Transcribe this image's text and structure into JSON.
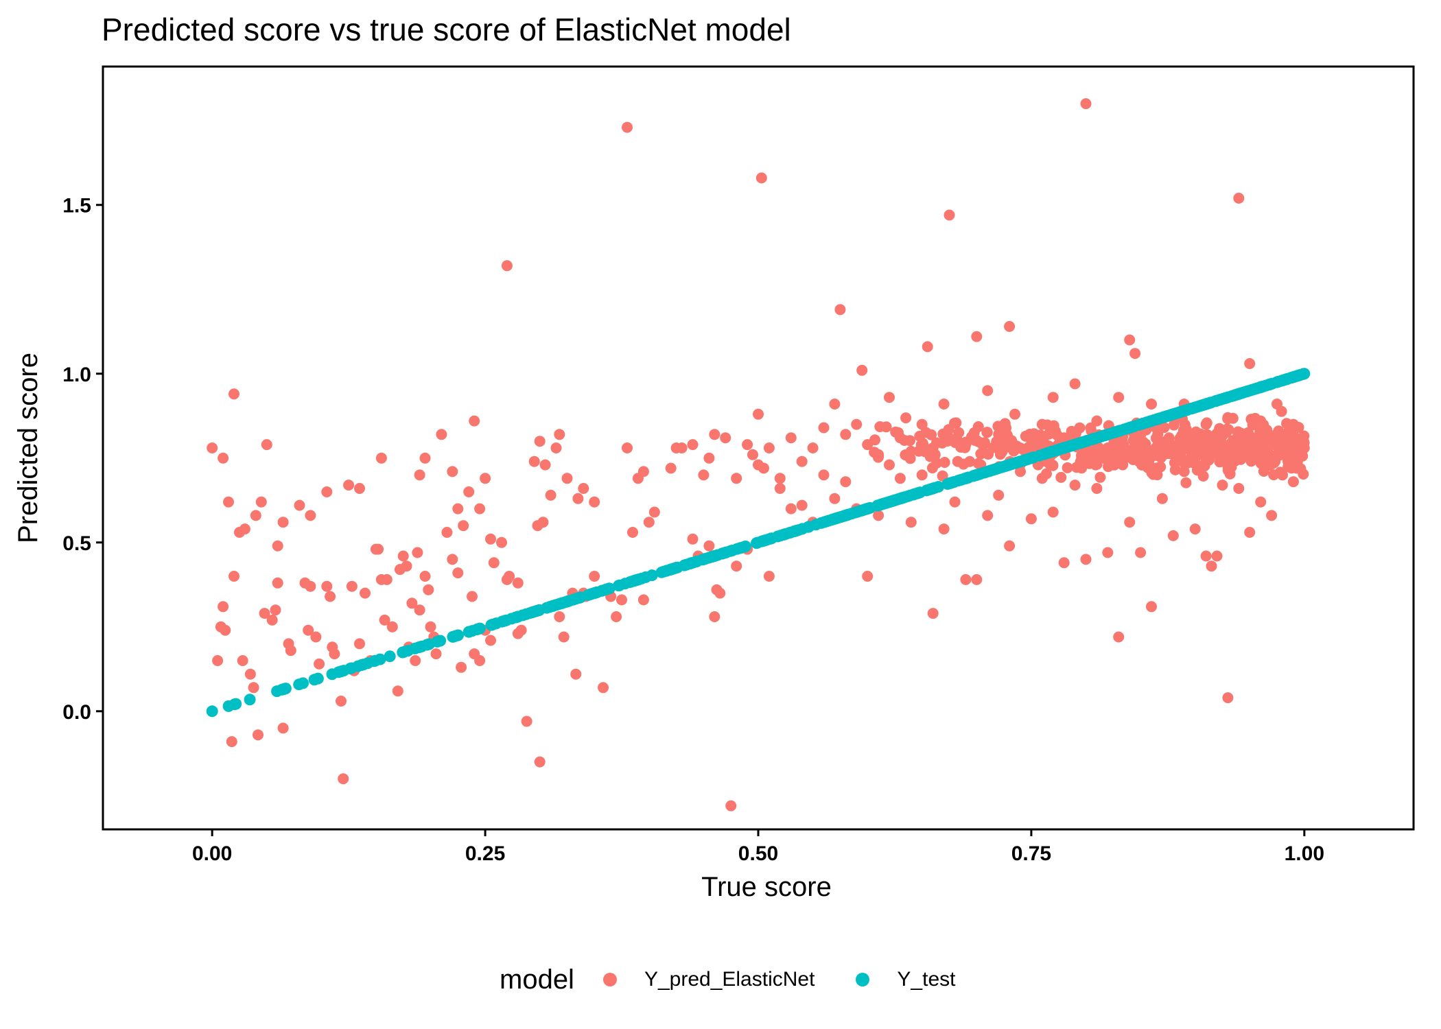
{
  "chart_data": {
    "type": "scatter",
    "title": "Predicted score vs true score of ElasticNet model",
    "xlabel": "True score",
    "ylabel": "Predicted score",
    "xlim": [
      -0.1,
      1.1
    ],
    "ylim": [
      -0.35,
      1.91
    ],
    "xticks": [
      0.0,
      0.25,
      0.5,
      0.75,
      1.0
    ],
    "xtick_labels": [
      "0.00",
      "0.25",
      "0.50",
      "0.75",
      "1.00"
    ],
    "yticks": [
      0.0,
      0.5,
      1.0,
      1.5
    ],
    "ytick_labels": [
      "0.0",
      "0.5",
      "1.0",
      "1.5"
    ],
    "grid": false,
    "legend": {
      "title": "model",
      "position": "bottom"
    },
    "series": [
      {
        "name": "Y_pred_ElasticNet",
        "color": "#F8766D",
        "points": [
          [
            0.0,
            0.78
          ],
          [
            0.01,
            0.75
          ],
          [
            0.02,
            0.94
          ],
          [
            0.015,
            0.62
          ],
          [
            0.025,
            0.53
          ],
          [
            0.03,
            0.54
          ],
          [
            0.04,
            0.58
          ],
          [
            0.045,
            0.62
          ],
          [
            0.05,
            0.79
          ],
          [
            0.06,
            0.49
          ],
          [
            0.065,
            0.56
          ],
          [
            0.08,
            0.61
          ],
          [
            0.09,
            0.58
          ],
          [
            0.105,
            0.65
          ],
          [
            0.125,
            0.67
          ],
          [
            0.135,
            0.66
          ],
          [
            0.155,
            0.75
          ],
          [
            0.19,
            0.7
          ],
          [
            0.195,
            0.75
          ],
          [
            0.21,
            0.82
          ],
          [
            0.22,
            0.71
          ],
          [
            0.225,
            0.6
          ],
          [
            0.235,
            0.65
          ],
          [
            0.24,
            0.86
          ],
          [
            0.245,
            0.6
          ],
          [
            0.25,
            0.69
          ],
          [
            0.255,
            0.51
          ],
          [
            0.265,
            0.5
          ],
          [
            0.27,
            1.32
          ],
          [
            0.28,
            0.38
          ],
          [
            0.295,
            0.74
          ],
          [
            0.3,
            0.8
          ],
          [
            0.305,
            0.73
          ],
          [
            0.31,
            0.64
          ],
          [
            0.315,
            0.78
          ],
          [
            0.318,
            0.82
          ],
          [
            0.325,
            0.69
          ],
          [
            0.335,
            0.63
          ],
          [
            0.34,
            0.66
          ],
          [
            0.35,
            0.62
          ],
          [
            0.38,
            1.73
          ],
          [
            0.38,
            0.78
          ],
          [
            0.385,
            0.53
          ],
          [
            0.39,
            0.69
          ],
          [
            0.395,
            0.71
          ],
          [
            0.4,
            0.56
          ],
          [
            0.405,
            0.59
          ],
          [
            0.42,
            0.72
          ],
          [
            0.425,
            0.78
          ],
          [
            0.43,
            0.78
          ],
          [
            0.44,
            0.79
          ],
          [
            0.45,
            0.7
          ],
          [
            0.455,
            0.75
          ],
          [
            0.46,
            0.82
          ],
          [
            0.47,
            0.81
          ],
          [
            0.48,
            0.69
          ],
          [
            0.49,
            0.79
          ],
          [
            0.495,
            0.76
          ],
          [
            0.5,
            0.88
          ],
          [
            0.503,
            1.58
          ],
          [
            0.505,
            0.72
          ],
          [
            0.51,
            0.78
          ],
          [
            0.52,
            0.69
          ],
          [
            0.53,
            0.81
          ],
          [
            0.54,
            0.74
          ],
          [
            0.55,
            0.78
          ],
          [
            0.56,
            0.84
          ],
          [
            0.57,
            0.91
          ],
          [
            0.575,
            1.19
          ],
          [
            0.58,
            0.82
          ],
          [
            0.59,
            0.85
          ],
          [
            0.595,
            1.01
          ],
          [
            0.6,
            0.79
          ],
          [
            0.61,
            0.76
          ],
          [
            0.62,
            0.93
          ],
          [
            0.63,
            0.81
          ],
          [
            0.64,
            0.77
          ],
          [
            0.65,
            0.85
          ],
          [
            0.655,
            1.08
          ],
          [
            0.66,
            0.78
          ],
          [
            0.67,
            0.91
          ],
          [
            0.675,
            1.47
          ],
          [
            0.69,
            0.79
          ],
          [
            0.7,
            1.11
          ],
          [
            0.71,
            0.95
          ],
          [
            0.72,
            0.82
          ],
          [
            0.73,
            1.14
          ],
          [
            0.735,
            0.88
          ],
          [
            0.74,
            0.78
          ],
          [
            0.75,
            0.79
          ],
          [
            0.76,
            0.85
          ],
          [
            0.77,
            0.93
          ],
          [
            0.78,
            0.81
          ],
          [
            0.79,
            0.97
          ],
          [
            0.8,
            1.8
          ],
          [
            0.81,
            0.86
          ],
          [
            0.82,
            0.78
          ],
          [
            0.83,
            0.93
          ],
          [
            0.84,
            1.1
          ],
          [
            0.845,
            1.06
          ],
          [
            0.85,
            0.84
          ],
          [
            0.86,
            0.91
          ],
          [
            0.87,
            0.79
          ],
          [
            0.88,
            0.88
          ],
          [
            0.89,
            0.91
          ],
          [
            0.9,
            0.82
          ],
          [
            0.91,
            0.85
          ],
          [
            0.92,
            0.8
          ],
          [
            0.93,
            0.87
          ],
          [
            0.94,
            1.52
          ],
          [
            0.95,
            1.03
          ],
          [
            0.96,
            0.86
          ],
          [
            0.97,
            0.79
          ],
          [
            0.98,
            0.82
          ],
          [
            0.99,
            0.85
          ],
          [
            1.0,
            0.78
          ],
          [
            0.985,
            0.74
          ],
          [
            0.975,
            0.91
          ],
          [
            0.005,
            0.15
          ],
          [
            0.008,
            0.25
          ],
          [
            0.01,
            0.31
          ],
          [
            0.012,
            0.24
          ],
          [
            0.018,
            -0.09
          ],
          [
            0.02,
            0.4
          ],
          [
            0.028,
            0.15
          ],
          [
            0.035,
            0.11
          ],
          [
            0.038,
            0.07
          ],
          [
            0.042,
            -0.07
          ],
          [
            0.048,
            0.29
          ],
          [
            0.055,
            0.27
          ],
          [
            0.058,
            0.3
          ],
          [
            0.06,
            0.38
          ],
          [
            0.065,
            -0.05
          ],
          [
            0.07,
            0.2
          ],
          [
            0.072,
            0.18
          ],
          [
            0.085,
            0.38
          ],
          [
            0.088,
            0.24
          ],
          [
            0.09,
            0.37
          ],
          [
            0.095,
            0.22
          ],
          [
            0.098,
            0.14
          ],
          [
            0.105,
            0.37
          ],
          [
            0.108,
            0.34
          ],
          [
            0.11,
            0.19
          ],
          [
            0.112,
            0.17
          ],
          [
            0.118,
            0.03
          ],
          [
            0.12,
            -0.2
          ],
          [
            0.128,
            0.37
          ],
          [
            0.13,
            0.12
          ],
          [
            0.135,
            0.2
          ],
          [
            0.14,
            0.35
          ],
          [
            0.145,
            0.15
          ],
          [
            0.15,
            0.48
          ],
          [
            0.152,
            0.48
          ],
          [
            0.155,
            0.39
          ],
          [
            0.158,
            0.27
          ],
          [
            0.16,
            0.39
          ],
          [
            0.165,
            0.25
          ],
          [
            0.17,
            0.06
          ],
          [
            0.172,
            0.42
          ],
          [
            0.175,
            0.46
          ],
          [
            0.178,
            0.43
          ],
          [
            0.18,
            0.19
          ],
          [
            0.183,
            0.32
          ],
          [
            0.186,
            0.15
          ],
          [
            0.188,
            0.47
          ],
          [
            0.19,
            0.3
          ],
          [
            0.195,
            0.4
          ],
          [
            0.198,
            0.36
          ],
          [
            0.2,
            0.25
          ],
          [
            0.203,
            0.22
          ],
          [
            0.205,
            0.17
          ],
          [
            0.215,
            0.53
          ],
          [
            0.22,
            0.45
          ],
          [
            0.225,
            0.41
          ],
          [
            0.228,
            0.13
          ],
          [
            0.23,
            0.55
          ],
          [
            0.238,
            0.34
          ],
          [
            0.24,
            0.17
          ],
          [
            0.245,
            0.15
          ],
          [
            0.25,
            0.24
          ],
          [
            0.255,
            0.21
          ],
          [
            0.258,
            0.44
          ],
          [
            0.27,
            0.39
          ],
          [
            0.272,
            0.4
          ],
          [
            0.28,
            0.23
          ],
          [
            0.283,
            0.24
          ],
          [
            0.288,
            -0.03
          ],
          [
            0.298,
            0.55
          ],
          [
            0.3,
            -0.15
          ],
          [
            0.303,
            0.56
          ],
          [
            0.31,
            0.31
          ],
          [
            0.318,
            0.28
          ],
          [
            0.322,
            0.22
          ],
          [
            0.33,
            0.35
          ],
          [
            0.333,
            0.11
          ],
          [
            0.34,
            0.35
          ],
          [
            0.342,
            0.34
          ],
          [
            0.35,
            0.4
          ],
          [
            0.358,
            0.07
          ],
          [
            0.365,
            0.34
          ],
          [
            0.37,
            0.28
          ],
          [
            0.375,
            0.33
          ],
          [
            0.395,
            0.33
          ],
          [
            0.44,
            0.51
          ],
          [
            0.445,
            0.46
          ],
          [
            0.455,
            0.49
          ],
          [
            0.46,
            0.28
          ],
          [
            0.462,
            0.36
          ],
          [
            0.465,
            0.35
          ],
          [
            0.47,
            0.47
          ],
          [
            0.475,
            -0.28
          ],
          [
            0.48,
            0.43
          ],
          [
            0.49,
            0.48
          ],
          [
            0.5,
            0.73
          ],
          [
            0.51,
            0.4
          ],
          [
            0.52,
            0.66
          ],
          [
            0.53,
            0.6
          ],
          [
            0.54,
            0.61
          ],
          [
            0.55,
            0.56
          ],
          [
            0.56,
            0.7
          ],
          [
            0.57,
            0.63
          ],
          [
            0.58,
            0.68
          ],
          [
            0.59,
            0.6
          ],
          [
            0.6,
            0.4
          ],
          [
            0.61,
            0.58
          ],
          [
            0.62,
            0.73
          ],
          [
            0.63,
            0.69
          ],
          [
            0.64,
            0.56
          ],
          [
            0.65,
            0.7
          ],
          [
            0.66,
            0.29
          ],
          [
            0.67,
            0.54
          ],
          [
            0.68,
            0.62
          ],
          [
            0.69,
            0.39
          ],
          [
            0.7,
            0.39
          ],
          [
            0.71,
            0.58
          ],
          [
            0.72,
            0.64
          ],
          [
            0.73,
            0.49
          ],
          [
            0.74,
            0.71
          ],
          [
            0.75,
            0.57
          ],
          [
            0.76,
            0.69
          ],
          [
            0.77,
            0.59
          ],
          [
            0.78,
            0.44
          ],
          [
            0.79,
            0.67
          ],
          [
            0.8,
            0.45
          ],
          [
            0.81,
            0.66
          ],
          [
            0.82,
            0.47
          ],
          [
            0.83,
            0.22
          ],
          [
            0.84,
            0.56
          ],
          [
            0.85,
            0.47
          ],
          [
            0.86,
            0.31
          ],
          [
            0.87,
            0.63
          ],
          [
            0.88,
            0.52
          ],
          [
            0.89,
            0.71
          ],
          [
            0.9,
            0.54
          ],
          [
            0.91,
            0.46
          ],
          [
            0.915,
            0.43
          ],
          [
            0.92,
            0.46
          ],
          [
            0.925,
            0.67
          ],
          [
            0.93,
            0.04
          ],
          [
            0.94,
            0.66
          ],
          [
            0.95,
            0.53
          ],
          [
            0.96,
            0.62
          ],
          [
            0.97,
            0.58
          ],
          [
            0.98,
            0.7
          ],
          [
            0.99,
            0.68
          ],
          [
            0.993,
            0.72
          ]
        ],
        "dense_region": {
          "x_range": [
            0.58,
            1.0
          ],
          "y_center": 0.78,
          "y_spread": 0.13,
          "approx_point_count": 520
        }
      },
      {
        "name": "Y_test",
        "color": "#00BFC4",
        "relation": "y = x",
        "x_range": [
          0.0,
          1.0
        ],
        "approx_point_count": 650
      }
    ]
  }
}
